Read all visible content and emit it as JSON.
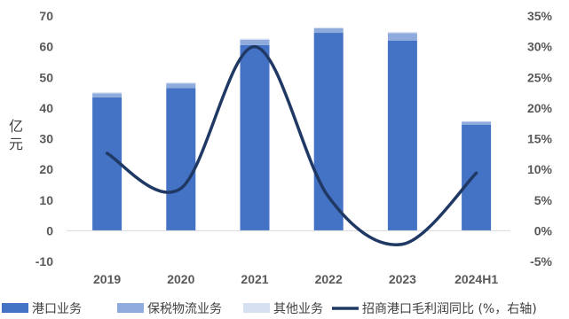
{
  "chart_data": {
    "type": "bar",
    "stacked": true,
    "categories": [
      "2019",
      "2020",
      "2021",
      "2022",
      "2023",
      "2024H1"
    ],
    "series": [
      {
        "name": "港口业务",
        "values": [
          43.5,
          46.5,
          60.5,
          64.5,
          62.0,
          34.5
        ],
        "color": "#4472C4"
      },
      {
        "name": "保税物流业务",
        "values": [
          1.3,
          1.5,
          1.7,
          1.5,
          2.4,
          1.0
        ],
        "color": "#8FAADC"
      },
      {
        "name": "其他业务",
        "values": [
          0.3,
          0.3,
          0.4,
          0.3,
          0.4,
          0.2
        ],
        "color": "#D6E0F0"
      }
    ],
    "line_series": {
      "name": "招商港口毛利润同比 (%，右轴)",
      "values": [
        12.6,
        6.9,
        30.0,
        5.5,
        -2.2,
        9.4
      ],
      "color": "#1F3864",
      "axis": "right"
    },
    "ylabel": "亿元",
    "ylim": [
      -10,
      70
    ],
    "yticks": [
      -10,
      0,
      10,
      20,
      30,
      40,
      50,
      60,
      70
    ],
    "y2lim": [
      -5,
      35
    ],
    "y2ticks": [
      -5,
      0,
      5,
      10,
      15,
      20,
      25,
      30,
      35
    ],
    "y2_suffix": "%",
    "legend_position": "bottom",
    "grid": false
  }
}
